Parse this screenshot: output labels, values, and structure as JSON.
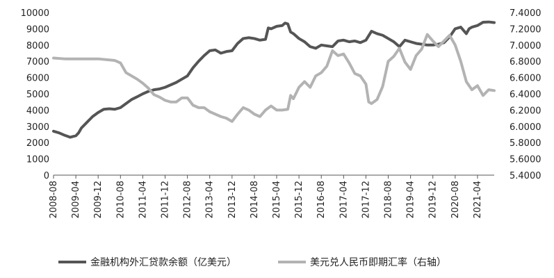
{
  "chart_data": {
    "type": "line",
    "title": "",
    "xlabel": "",
    "ylabel": "",
    "ylabel_right": "",
    "grid": false,
    "legend_position": "bottom",
    "left_axis": {
      "lim": [
        0,
        10000
      ],
      "ticks": [
        "0",
        "1000",
        "2000",
        "3000",
        "4000",
        "5000",
        "6000",
        "7000",
        "8000",
        "9000",
        "10000"
      ]
    },
    "right_axis": {
      "lim": [
        5.4,
        7.4
      ],
      "ticks": [
        "5.4000",
        "5.6000",
        "5.8000",
        "6.0000",
        "6.2000",
        "6.4000",
        "6.6000",
        "6.8000",
        "7.0000",
        "7.2000",
        "7.4000"
      ]
    },
    "x_ticks": [
      "2008-08",
      "2009-04",
      "2009-12",
      "2010-08",
      "2011-04",
      "2011-12",
      "2012-08",
      "2013-04",
      "2013-12",
      "2014-08",
      "2015-04",
      "2015-12",
      "2016-08",
      "2017-04",
      "2017-12",
      "2018-08",
      "2019-04",
      "2019-12",
      "2020-08",
      "2021-04"
    ],
    "x_range": [
      "2008-08",
      "2021-10"
    ],
    "series": [
      {
        "name": "金融机构外汇贷款余额（亿美元）",
        "axis": "left",
        "color": "#555555",
        "points": [
          [
            "2008-08",
            2700
          ],
          [
            "2008-10",
            2600
          ],
          [
            "2008-12",
            2450
          ],
          [
            "2009-02",
            2330
          ],
          [
            "2009-04",
            2420
          ],
          [
            "2009-05",
            2600
          ],
          [
            "2009-06",
            2900
          ],
          [
            "2009-08",
            3250
          ],
          [
            "2009-10",
            3600
          ],
          [
            "2009-12",
            3850
          ],
          [
            "2010-02",
            4050
          ],
          [
            "2010-04",
            4080
          ],
          [
            "2010-06",
            4050
          ],
          [
            "2010-08",
            4150
          ],
          [
            "2010-10",
            4400
          ],
          [
            "2010-12",
            4650
          ],
          [
            "2011-02",
            4820
          ],
          [
            "2011-04",
            5000
          ],
          [
            "2011-06",
            5150
          ],
          [
            "2011-08",
            5250
          ],
          [
            "2011-10",
            5300
          ],
          [
            "2011-12",
            5400
          ],
          [
            "2012-02",
            5550
          ],
          [
            "2012-04",
            5700
          ],
          [
            "2012-06",
            5900
          ],
          [
            "2012-08",
            6100
          ],
          [
            "2012-10",
            6600
          ],
          [
            "2012-12",
            7000
          ],
          [
            "2013-02",
            7350
          ],
          [
            "2013-04",
            7650
          ],
          [
            "2013-06",
            7700
          ],
          [
            "2013-08",
            7500
          ],
          [
            "2013-10",
            7600
          ],
          [
            "2013-12",
            7650
          ],
          [
            "2014-02",
            8100
          ],
          [
            "2014-04",
            8400
          ],
          [
            "2014-06",
            8450
          ],
          [
            "2014-08",
            8400
          ],
          [
            "2014-10",
            8300
          ],
          [
            "2014-12",
            8350
          ],
          [
            "2015-01",
            9050
          ],
          [
            "2015-02",
            9000
          ],
          [
            "2015-04",
            9150
          ],
          [
            "2015-06",
            9200
          ],
          [
            "2015-07",
            9350
          ],
          [
            "2015-08",
            9300
          ],
          [
            "2015-09",
            8800
          ],
          [
            "2015-10",
            8700
          ],
          [
            "2015-12",
            8400
          ],
          [
            "2016-02",
            8200
          ],
          [
            "2016-04",
            7900
          ],
          [
            "2016-06",
            7800
          ],
          [
            "2016-08",
            8000
          ],
          [
            "2016-10",
            7950
          ],
          [
            "2016-12",
            7900
          ],
          [
            "2017-02",
            8250
          ],
          [
            "2017-04",
            8300
          ],
          [
            "2017-06",
            8200
          ],
          [
            "2017-08",
            8250
          ],
          [
            "2017-10",
            8150
          ],
          [
            "2017-12",
            8300
          ],
          [
            "2018-02",
            8850
          ],
          [
            "2018-04",
            8700
          ],
          [
            "2018-06",
            8600
          ],
          [
            "2018-08",
            8400
          ],
          [
            "2018-10",
            8200
          ],
          [
            "2018-12",
            7900
          ],
          [
            "2019-02",
            8300
          ],
          [
            "2019-04",
            8200
          ],
          [
            "2019-06",
            8100
          ],
          [
            "2019-08",
            8050
          ],
          [
            "2019-10",
            8000
          ],
          [
            "2019-12",
            8000
          ],
          [
            "2020-02",
            8050
          ],
          [
            "2020-04",
            8150
          ],
          [
            "2020-06",
            8500
          ],
          [
            "2020-08",
            9000
          ],
          [
            "2020-10",
            9100
          ],
          [
            "2020-12",
            8700
          ],
          [
            "2021-01",
            9000
          ],
          [
            "2021-02",
            9100
          ],
          [
            "2021-04",
            9200
          ],
          [
            "2021-06",
            9400
          ],
          [
            "2021-08",
            9420
          ],
          [
            "2021-10",
            9380
          ]
        ]
      },
      {
        "name": "美元兑人民币即期汇率（右轴）",
        "axis": "right",
        "color": "#b3b3b3",
        "points": [
          [
            "2008-08",
            6.84
          ],
          [
            "2008-12",
            6.83
          ],
          [
            "2009-04",
            6.83
          ],
          [
            "2009-08",
            6.83
          ],
          [
            "2009-12",
            6.83
          ],
          [
            "2010-06",
            6.81
          ],
          [
            "2010-08",
            6.78
          ],
          [
            "2010-10",
            6.66
          ],
          [
            "2010-12",
            6.62
          ],
          [
            "2011-02",
            6.58
          ],
          [
            "2011-04",
            6.53
          ],
          [
            "2011-06",
            6.47
          ],
          [
            "2011-08",
            6.39
          ],
          [
            "2011-10",
            6.36
          ],
          [
            "2011-12",
            6.32
          ],
          [
            "2012-02",
            6.3
          ],
          [
            "2012-04",
            6.3
          ],
          [
            "2012-06",
            6.35
          ],
          [
            "2012-08",
            6.35
          ],
          [
            "2012-10",
            6.26
          ],
          [
            "2012-12",
            6.23
          ],
          [
            "2013-02",
            6.23
          ],
          [
            "2013-04",
            6.18
          ],
          [
            "2013-06",
            6.15
          ],
          [
            "2013-08",
            6.12
          ],
          [
            "2013-10",
            6.1
          ],
          [
            "2013-12",
            6.06
          ],
          [
            "2014-02",
            6.15
          ],
          [
            "2014-04",
            6.23
          ],
          [
            "2014-06",
            6.2
          ],
          [
            "2014-08",
            6.15
          ],
          [
            "2014-10",
            6.12
          ],
          [
            "2014-12",
            6.2
          ],
          [
            "2015-02",
            6.25
          ],
          [
            "2015-04",
            6.2
          ],
          [
            "2015-06",
            6.2
          ],
          [
            "2015-08",
            6.21
          ],
          [
            "2015-09",
            6.38
          ],
          [
            "2015-10",
            6.34
          ],
          [
            "2015-12",
            6.48
          ],
          [
            "2016-02",
            6.55
          ],
          [
            "2016-04",
            6.48
          ],
          [
            "2016-06",
            6.62
          ],
          [
            "2016-08",
            6.66
          ],
          [
            "2016-10",
            6.74
          ],
          [
            "2016-12",
            6.93
          ],
          [
            "2017-02",
            6.87
          ],
          [
            "2017-04",
            6.89
          ],
          [
            "2017-06",
            6.78
          ],
          [
            "2017-08",
            6.65
          ],
          [
            "2017-10",
            6.62
          ],
          [
            "2017-12",
            6.52
          ],
          [
            "2018-01",
            6.3
          ],
          [
            "2018-02",
            6.28
          ],
          [
            "2018-04",
            6.33
          ],
          [
            "2018-06",
            6.49
          ],
          [
            "2018-08",
            6.8
          ],
          [
            "2018-10",
            6.86
          ],
          [
            "2018-12",
            6.96
          ],
          [
            "2019-02",
            6.79
          ],
          [
            "2019-04",
            6.7
          ],
          [
            "2019-06",
            6.87
          ],
          [
            "2019-08",
            6.95
          ],
          [
            "2019-10",
            7.13
          ],
          [
            "2019-12",
            7.05
          ],
          [
            "2020-02",
            6.98
          ],
          [
            "2020-04",
            7.05
          ],
          [
            "2020-06",
            7.12
          ],
          [
            "2020-08",
            7.0
          ],
          [
            "2020-10",
            6.8
          ],
          [
            "2020-12",
            6.55
          ],
          [
            "2021-02",
            6.45
          ],
          [
            "2021-04",
            6.5
          ],
          [
            "2021-06",
            6.38
          ],
          [
            "2021-08",
            6.45
          ],
          [
            "2021-10",
            6.44
          ]
        ]
      }
    ]
  }
}
